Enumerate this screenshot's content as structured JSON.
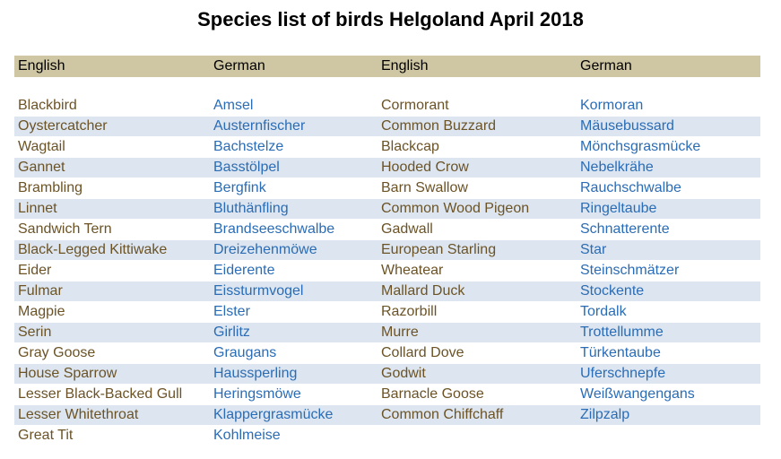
{
  "title": "Species list of birds Helgoland April 2018",
  "headers": [
    "English",
    "German",
    "English",
    "German"
  ],
  "rows": [
    [
      "Blackbird",
      "Amsel",
      "Cormorant",
      "Kormoran"
    ],
    [
      "Oystercatcher",
      "Austernfischer",
      "Common Buzzard",
      "Mäusebussard"
    ],
    [
      "Wagtail",
      "Bachstelze",
      "Blackcap",
      "Mönchsgrasmücke"
    ],
    [
      "Gannet",
      "Basstölpel",
      "Hooded Crow",
      "Nebelkrähe"
    ],
    [
      "Brambling",
      "Bergfink",
      "Barn Swallow",
      "Rauchschwalbe"
    ],
    [
      "Linnet",
      "Bluthänfling",
      "Common Wood Pigeon",
      "Ringeltaube"
    ],
    [
      "Sandwich Tern",
      "Brandseeschwalbe",
      "Gadwall",
      "Schnatterente"
    ],
    [
      "Black-Legged Kittiwake",
      "Dreizehenmöwe",
      "European Starling",
      "Star"
    ],
    [
      "Eider",
      "Eiderente",
      "Wheatear",
      "Steinschmätzer"
    ],
    [
      "Fulmar",
      "Eissturmvogel",
      "Mallard Duck",
      "Stockente"
    ],
    [
      "Magpie",
      "Elster",
      "Razorbill",
      "Tordalk"
    ],
    [
      "Serin",
      "Girlitz",
      "Murre",
      "Trottellumme"
    ],
    [
      "Gray Goose",
      "Graugans",
      "Collard Dove",
      "Türkentaube"
    ],
    [
      "House Sparrow",
      "Haussperling",
      "Godwit",
      "Uferschnepfe"
    ],
    [
      "Lesser Black-Backed Gull",
      "Heringsmöwe",
      "Barnacle Goose",
      "Weißwangengans"
    ],
    [
      "Lesser Whitethroat",
      "Klappergrasmücke",
      "Common Chiffchaff",
      "Zilpzalp"
    ],
    [
      "Great Tit",
      "Kohlmeise",
      "",
      ""
    ]
  ],
  "colors": {
    "header_bg": "#cfc6a3",
    "row_alt_bg": "#dde6f0",
    "english_text": "#6b5326",
    "german_text": "#2a6cb5"
  }
}
